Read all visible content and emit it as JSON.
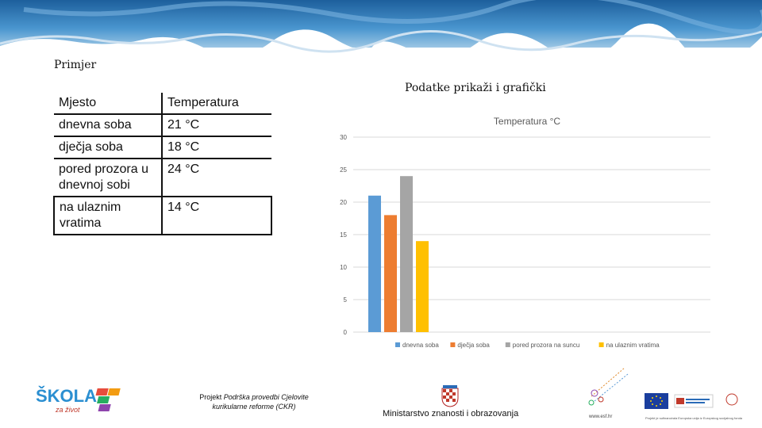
{
  "slide": {
    "heading": "Primjer",
    "subtitle": "Podatke prikaži i grafički"
  },
  "table": {
    "header": [
      "Mjesto",
      "Temperatura"
    ],
    "rows": [
      [
        "dnevna soba",
        "21 °C"
      ],
      [
        "dječja soba",
        "18 °C"
      ],
      [
        "pored prozora u dnevnoj sobi",
        "24 °C"
      ],
      [
        "na ulaznim vratima",
        "14 °C"
      ]
    ]
  },
  "chart_data": {
    "type": "bar",
    "title": "Temperatura °C",
    "categories": [
      "dnevna soba",
      "dječja soba",
      "pored prozora na suncu",
      "na ulaznim vratima"
    ],
    "values": [
      21,
      18,
      24,
      14
    ],
    "colors": [
      "#5b9bd5",
      "#ed7d31",
      "#a5a5a5",
      "#ffc000"
    ],
    "ylim": [
      0,
      30
    ],
    "yticks": [
      0,
      5,
      10,
      15,
      20,
      25,
      30
    ],
    "grid": true,
    "legend": "bottom"
  },
  "footer": {
    "project_prefix": "Projekt ",
    "project_name": "Podrška provedbi Cjelovite kurikularne reforme (CKR)",
    "ministry": "Ministarstvo znanosti i obrazovanja",
    "skola_logo": "ŠKOLA",
    "skola_sub": "za život",
    "web": "www.esf.hr",
    "eu_caption": "Projekt je sufinancirala Europska unija iz Europskog socijalnog fonda"
  },
  "colors": {
    "banner_sky": "#3f8bc9",
    "banner_ice": "#e8f1f8"
  }
}
